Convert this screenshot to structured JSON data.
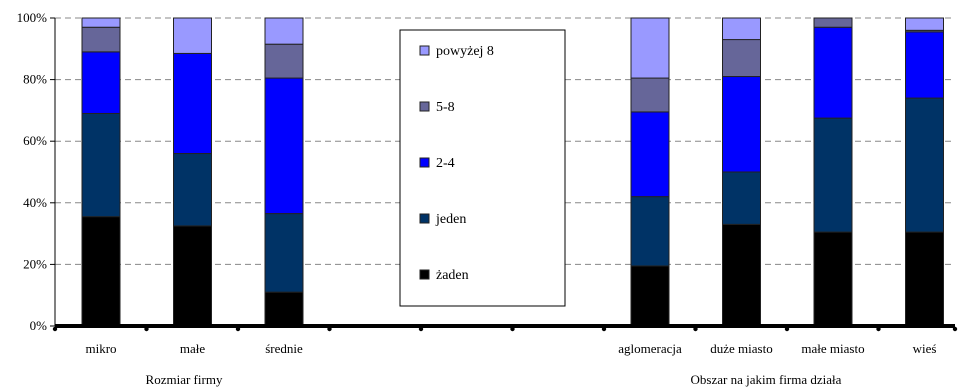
{
  "chart_data": {
    "type": "bar",
    "stacked": true,
    "percent": true,
    "ylim": [
      0,
      100
    ],
    "yticks": [
      "0%",
      "20%",
      "40%",
      "60%",
      "80%",
      "100%"
    ],
    "grid": true,
    "legend_position": "center",
    "categories": [
      "mikro",
      "małe",
      "średnie",
      "aglomeracja",
      "duże miasto",
      "małe miasto",
      "wieś"
    ],
    "groups": [
      {
        "label": "Rozmiar firmy",
        "categories": [
          "mikro",
          "małe",
          "średnie"
        ]
      },
      {
        "label": "Obszar na jakim firma działa",
        "categories": [
          "aglomeracja",
          "duże miasto",
          "małe miasto",
          "wieś"
        ]
      }
    ],
    "series": [
      {
        "name": "żaden",
        "color": "#000000",
        "values": [
          35.5,
          32.5,
          11,
          19.5,
          33,
          30.5,
          30.5
        ]
      },
      {
        "name": "jeden",
        "color": "#003366",
        "values": [
          33.5,
          23.5,
          25.5,
          22.5,
          17,
          37,
          43.5
        ]
      },
      {
        "name": "2-4",
        "color": "#0000ff",
        "values": [
          20,
          32.5,
          44,
          27.5,
          31,
          29.5,
          21.5
        ]
      },
      {
        "name": "5-8",
        "color": "#666699",
        "values": [
          8,
          0,
          11,
          11,
          12,
          3,
          0.5
        ]
      },
      {
        "name": "powyżej 8",
        "color": "#9999ff",
        "values": [
          3,
          11.5,
          8.5,
          19.5,
          7,
          0,
          4
        ]
      }
    ]
  }
}
